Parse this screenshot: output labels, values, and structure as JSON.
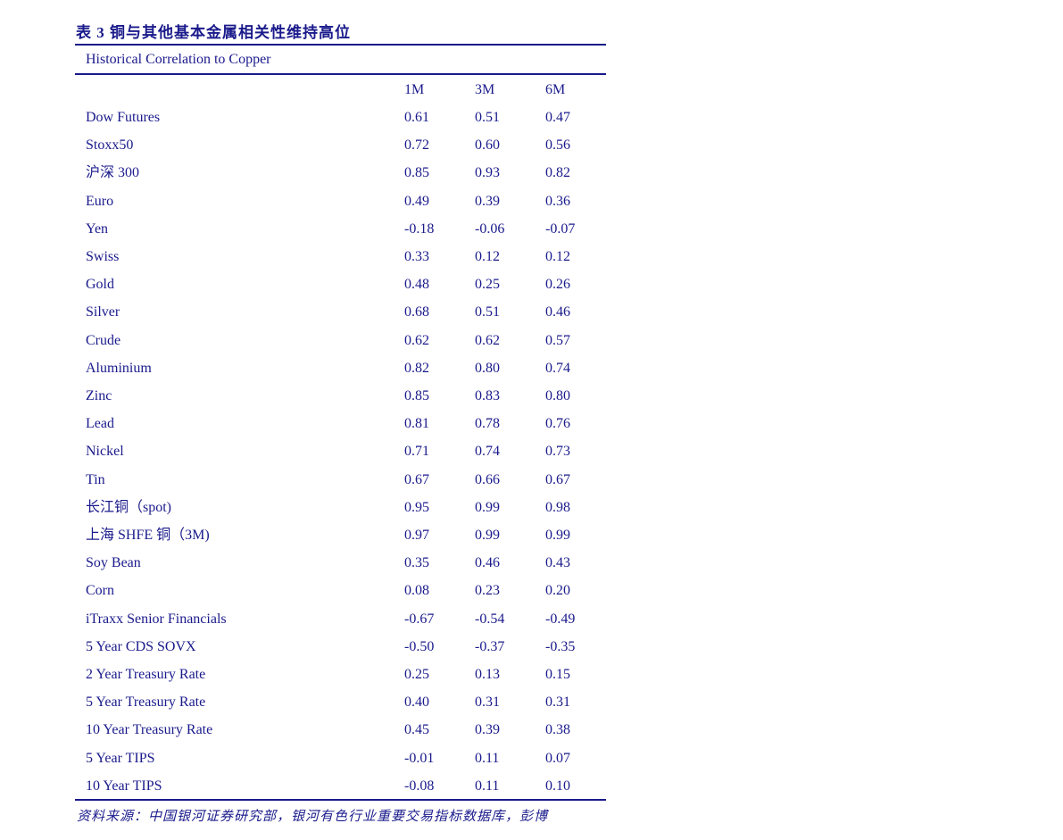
{
  "title": "表 3 铜与其他基本金属相关性维持高位",
  "table": {
    "caption": "Historical Correlation to Copper",
    "columns": [
      "",
      "1M",
      "3M",
      "6M"
    ],
    "rows": [
      [
        "Dow Futures",
        "0.61",
        "0.51",
        "0.47"
      ],
      [
        "Stoxx50",
        "0.72",
        "0.60",
        "0.56"
      ],
      [
        "沪深 300",
        "0.85",
        "0.93",
        "0.82"
      ],
      [
        "Euro",
        "0.49",
        "0.39",
        "0.36"
      ],
      [
        "Yen",
        "-0.18",
        "-0.06",
        "-0.07"
      ],
      [
        "Swiss",
        "0.33",
        "0.12",
        "0.12"
      ],
      [
        "Gold",
        "0.48",
        "0.25",
        "0.26"
      ],
      [
        "Silver",
        "0.68",
        "0.51",
        "0.46"
      ],
      [
        "Crude",
        "0.62",
        "0.62",
        "0.57"
      ],
      [
        "Aluminium",
        "0.82",
        "0.80",
        "0.74"
      ],
      [
        "Zinc",
        "0.85",
        "0.83",
        "0.80"
      ],
      [
        "Lead",
        "0.81",
        "0.78",
        "0.76"
      ],
      [
        "Nickel",
        "0.71",
        "0.74",
        "0.73"
      ],
      [
        "Tin",
        "0.67",
        "0.66",
        "0.67"
      ],
      [
        "长江铜（spot)",
        "0.95",
        "0.99",
        "0.98"
      ],
      [
        "上海 SHFE 铜（3M)",
        "0.97",
        "0.99",
        "0.99"
      ],
      [
        "Soy Bean",
        "0.35",
        "0.46",
        "0.43"
      ],
      [
        "Corn",
        "0.08",
        "0.23",
        "0.20"
      ],
      [
        "iTraxx Senior Financials",
        "-0.67",
        "-0.54",
        "-0.49"
      ],
      [
        "5 Year CDS SOVX",
        "-0.50",
        "-0.37",
        "-0.35"
      ],
      [
        "2 Year Treasury Rate",
        "0.25",
        "0.13",
        "0.15"
      ],
      [
        "5 Year Treasury Rate",
        "0.40",
        "0.31",
        "0.31"
      ],
      [
        "10 Year Treasury Rate",
        "0.45",
        "0.39",
        "0.38"
      ],
      [
        "5 Year TIPS",
        "-0.01",
        "0.11",
        "0.07"
      ],
      [
        "10 Year TIPS",
        "-0.08",
        "0.11",
        "0.10"
      ]
    ]
  },
  "source": "资料来源：中国银河证券研究部，银河有色行业重要交易指标数据库，彭博",
  "colors": {
    "text": "#1a1a8c",
    "rule": "#1a1a8c"
  }
}
